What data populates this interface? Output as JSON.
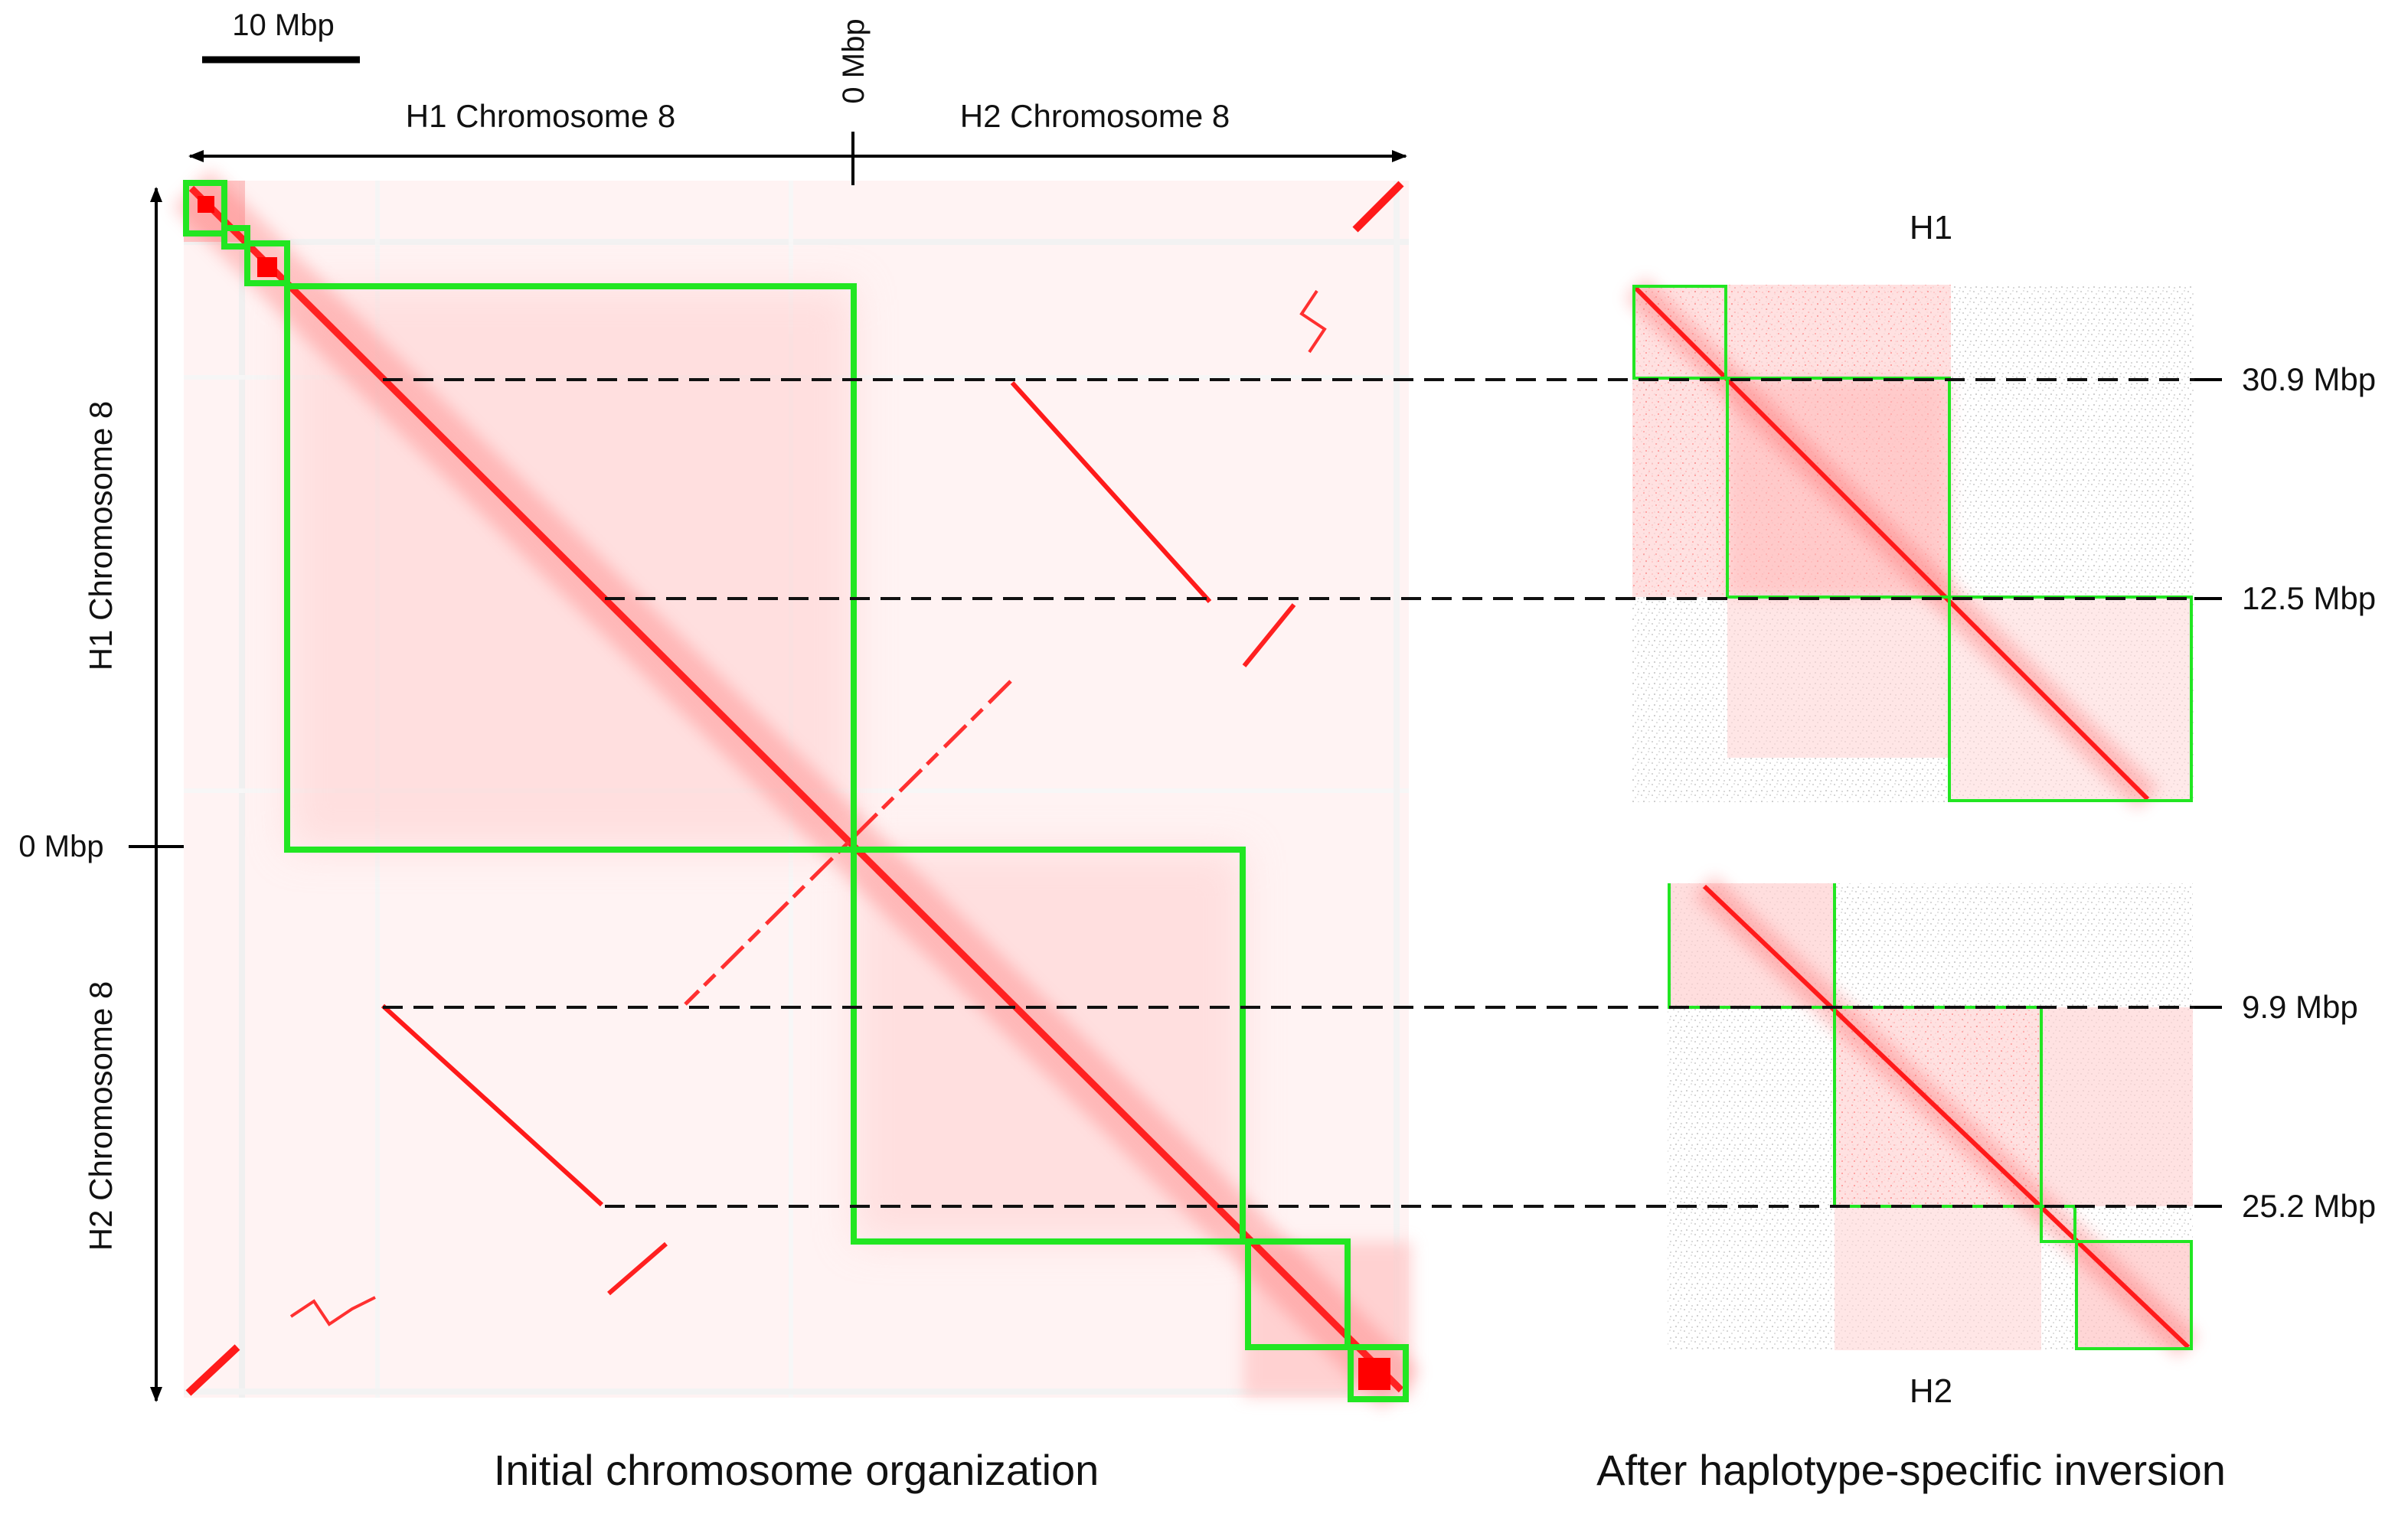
{
  "scale_bar": {
    "label": "10 Mbp"
  },
  "main_map": {
    "top_origin_label": "0 Mbp",
    "left_origin_label": "0 Mbp",
    "top_left_label": "H1 Chromosome 8",
    "top_right_label": "H2 Chromosome 8",
    "left_top_label": "H1 Chromosome 8",
    "left_bottom_label": "H2 Chromosome 8",
    "caption": "Initial chromosome organization"
  },
  "right_maps": {
    "h1_label": "H1",
    "h2_label": "H2",
    "caption": "After haplotype-specific inversion",
    "breakpoints": {
      "h1_first": "30.9 Mbp",
      "h1_second": "12.5 Mbp",
      "h2_first": "9.9 Mbp",
      "h2_second": "25.2 Mbp"
    }
  },
  "colors": {
    "heat": "#ff0000",
    "heat_light": "#ffe8e8",
    "box": "#22e622",
    "axis": "#000000",
    "noise": "#cfcfcf"
  }
}
